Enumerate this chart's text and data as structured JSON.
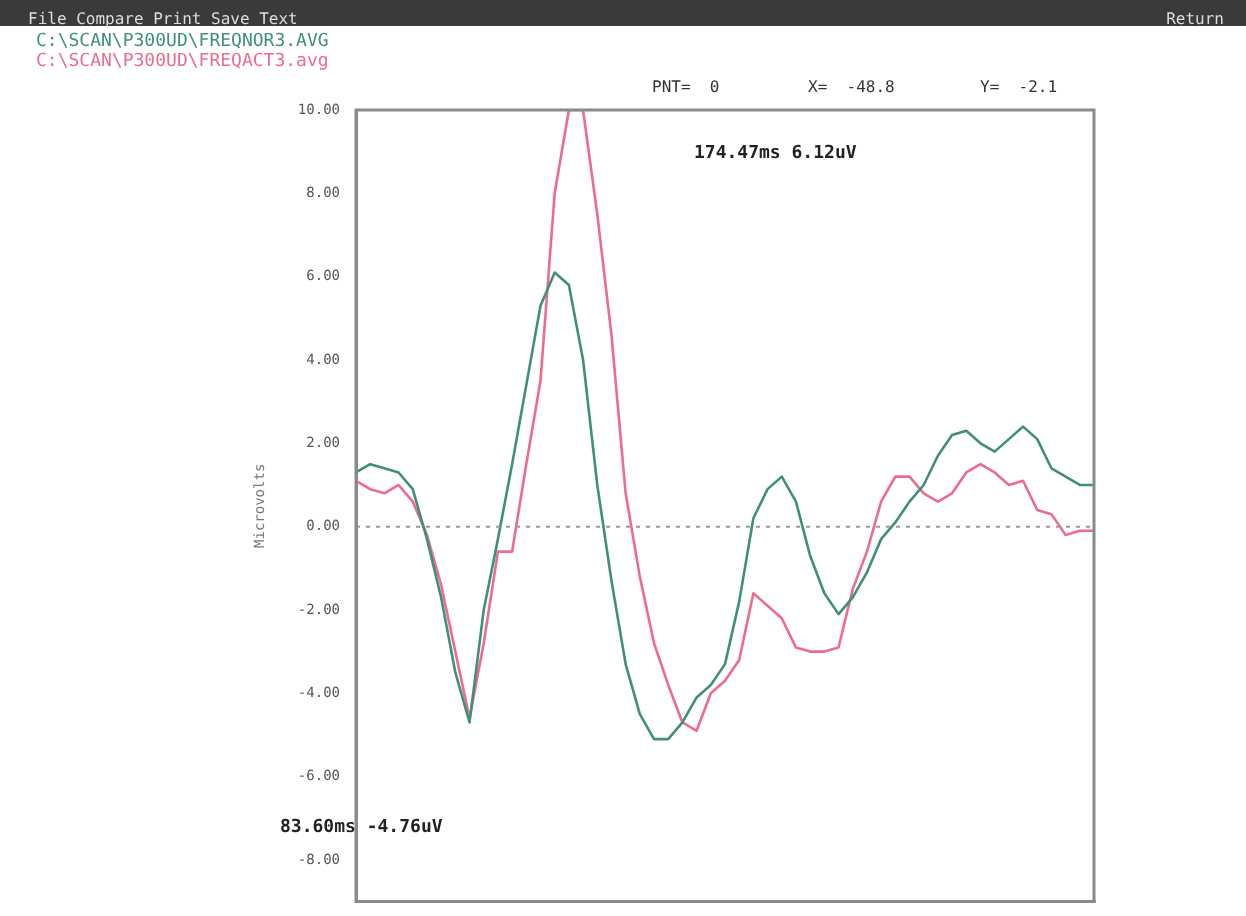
{
  "chart_data": {
    "type": "line",
    "ylabel": "Microvolts",
    "categories": [
      null,
      null,
      null,
      null,
      null,
      null,
      null,
      null,
      null,
      null,
      null,
      null,
      null,
      null,
      null,
      null,
      null,
      null,
      null,
      null,
      null,
      null,
      null,
      null,
      null,
      null,
      null,
      null,
      null,
      null,
      null,
      null,
      null,
      null,
      null,
      null,
      null,
      null,
      null,
      null,
      null,
      null,
      null,
      null,
      null,
      null,
      null,
      null,
      null,
      null,
      null,
      null,
      null
    ],
    "series": [
      {
        "name": "C:\\SCAN\\P300UD\\FREQNOR3.AVG",
        "color": "#3f8f7c",
        "values": [
          1.3,
          1.5,
          1.4,
          1.3,
          0.9,
          -0.3,
          -1.7,
          -3.5,
          -4.7,
          -2.0,
          -0.3,
          1.5,
          3.4,
          5.3,
          6.1,
          5.8,
          4.0,
          1.0,
          -1.3,
          -3.3,
          -4.5,
          -5.1,
          -5.1,
          -4.7,
          -4.1,
          -3.8,
          -3.3,
          -1.8,
          0.2,
          0.9,
          1.2,
          0.6,
          -0.7,
          -1.6,
          -2.1,
          -1.7,
          -1.1,
          -0.3,
          0.1,
          0.6,
          1.0,
          1.7,
          2.2,
          2.3,
          2.0,
          1.8,
          2.1,
          2.4,
          2.1,
          1.4,
          1.2,
          1.0,
          1.0
        ]
      },
      {
        "name": "C:\\SCAN\\P300UD\\FREQACT3.avg",
        "color": "#ec6c8e",
        "values": [
          1.1,
          0.9,
          0.8,
          1.0,
          0.6,
          -0.2,
          -1.4,
          -3.0,
          -4.6,
          -2.8,
          -0.6,
          -0.6,
          1.5,
          3.5,
          8.0,
          10.0,
          10.0,
          7.5,
          4.6,
          0.8,
          -1.2,
          -2.8,
          -3.8,
          -4.7,
          -4.9,
          -4.0,
          -3.7,
          -3.2,
          -1.6,
          -1.9,
          -2.2,
          -2.9,
          -3.0,
          -3.0,
          -2.9,
          -1.5,
          -0.6,
          0.6,
          1.2,
          1.2,
          0.8,
          0.6,
          0.8,
          1.3,
          1.5,
          1.3,
          1.0,
          1.1,
          0.4,
          0.3,
          -0.2,
          -0.1,
          -0.1
        ]
      }
    ],
    "ylim": [
      -9,
      10
    ],
    "yticks": [
      {
        "value": 10,
        "label": "10.00"
      },
      {
        "value": 8,
        "label": "8.00"
      },
      {
        "value": 6,
        "label": "6.00"
      },
      {
        "value": 4,
        "label": "4.00"
      },
      {
        "value": 2,
        "label": "2.00"
      },
      {
        "value": 0,
        "label": "0.00"
      },
      {
        "value": -2,
        "label": "-2.00"
      },
      {
        "value": -4,
        "label": "-4.00"
      },
      {
        "value": -6,
        "label": "-6.00"
      },
      {
        "value": -8,
        "label": "-8.00"
      }
    ],
    "ref_lines": [
      {
        "axis": "y",
        "value": 0,
        "color": "#9a9a9a",
        "line_style": "dotted"
      }
    ],
    "legend": "top left",
    "grid": false,
    "marker": "none",
    "line_style": "solid",
    "tick_labels": "y",
    "annotations": [
      "File Compare Print Save Text",
      "Return",
      "PNT=  0",
      "X=  -48.8",
      "Y=  -2.1",
      "174.47ms 6.12uV",
      "83.60ms -4.76uV"
    ]
  }
}
